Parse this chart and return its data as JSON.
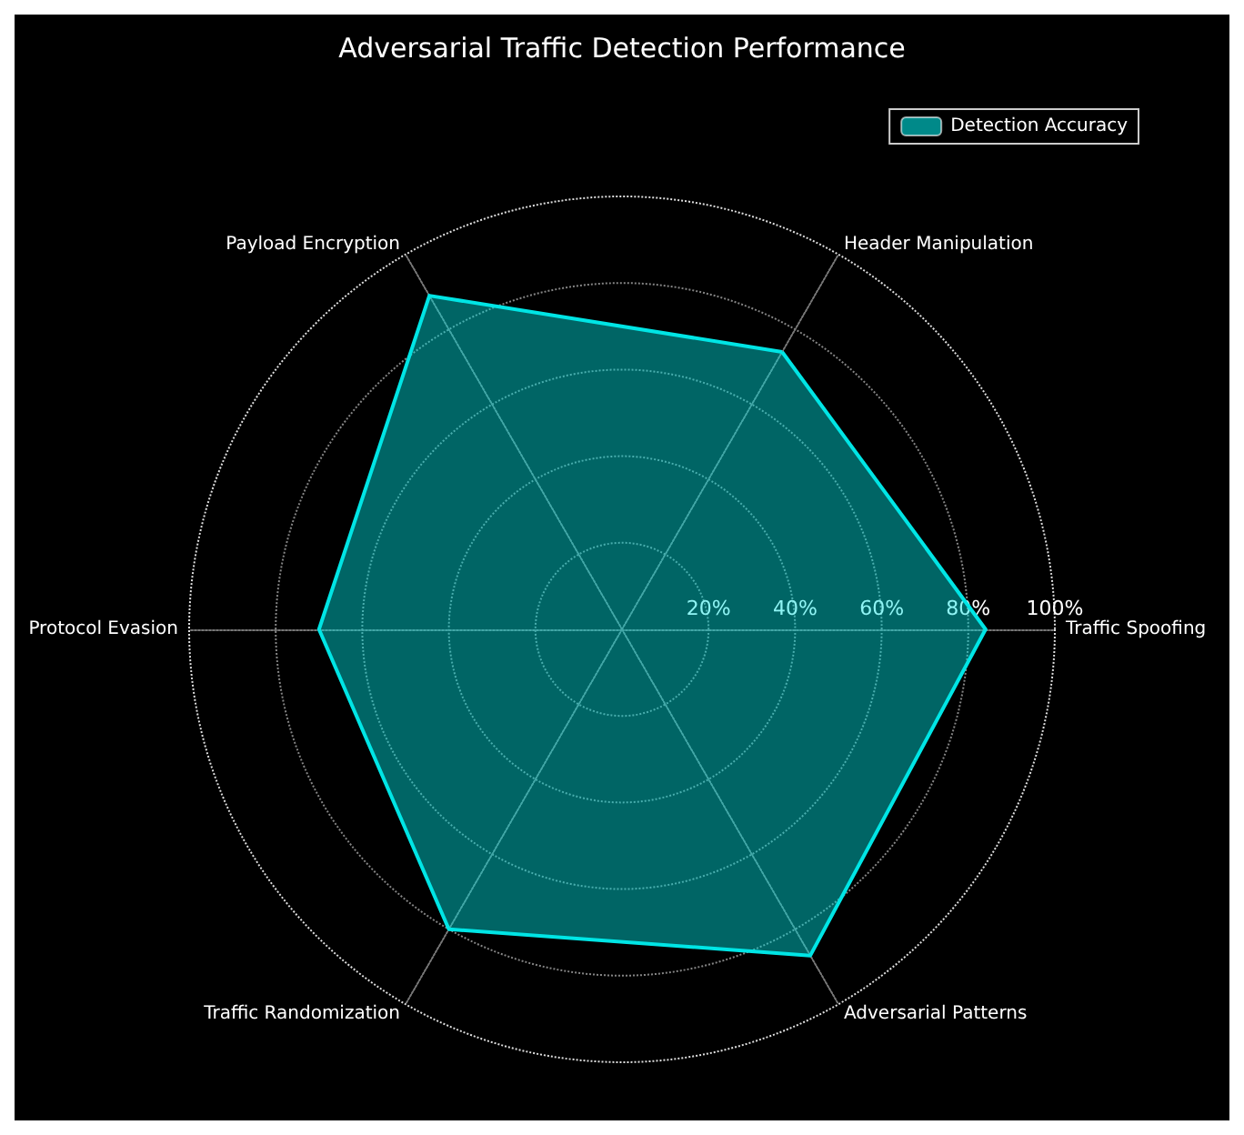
{
  "chart_data": {
    "type": "radar",
    "title": "Adversarial Traffic Detection Performance",
    "categories": [
      "Header Manipulation",
      "Traffic Spoofing",
      "Adversarial Patterns",
      "Traffic Randomization",
      "Protocol Evasion",
      "Payload Encryption"
    ],
    "series": [
      {
        "name": "Detection Accuracy",
        "color": "#00e5e5",
        "values": [
          74,
          84,
          87,
          80,
          70,
          89
        ]
      }
    ],
    "ylim": [
      0,
      100
    ],
    "yticks": [
      {
        "value": 20,
        "label": "20%"
      },
      {
        "value": 40,
        "label": "40%"
      },
      {
        "value": 60,
        "label": "60%"
      },
      {
        "value": 80,
        "label": "80%"
      },
      {
        "value": 100,
        "label": "100%"
      }
    ],
    "grid": true,
    "legend": "top right",
    "marker": "none",
    "line_style": "solid"
  }
}
